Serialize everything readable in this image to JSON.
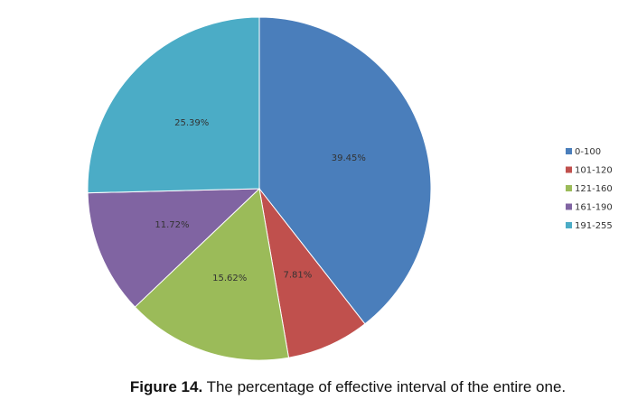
{
  "chart_data": {
    "type": "pie",
    "categories": [
      "0-100",
      "101-120",
      "121-160",
      "161-190",
      "191-255"
    ],
    "values": [
      39.45,
      7.81,
      15.62,
      11.72,
      25.39
    ],
    "data_labels": [
      "39.45%",
      "7.81%",
      "15.62%",
      "11.72%",
      "25.39%"
    ],
    "colors": [
      "#4a7ebb",
      "#c0504d",
      "#9bbb59",
      "#8064a2",
      "#4bacc6"
    ],
    "start_angle": "12 o'clock",
    "direction": "clockwise",
    "legend": "right"
  },
  "caption": {
    "number": "Figure 14.",
    "text": " The percentage of effective interval of the entire one."
  }
}
